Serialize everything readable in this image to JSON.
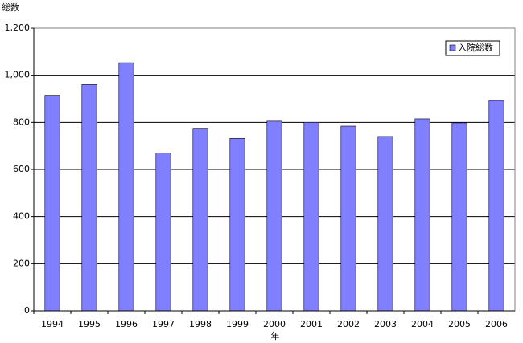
{
  "chart_data": {
    "type": "bar",
    "y_label": "総数",
    "x_label": "年",
    "categories": [
      "1994",
      "1995",
      "1996",
      "1997",
      "1998",
      "1999",
      "2000",
      "2001",
      "2002",
      "2003",
      "2004",
      "2005",
      "2006"
    ],
    "series": [
      {
        "name": "入院総数",
        "color": "#8080ff",
        "values": [
          915,
          960,
          1053,
          670,
          775,
          732,
          805,
          800,
          784,
          740,
          815,
          798,
          893
        ]
      }
    ],
    "ylim": [
      0,
      1200
    ],
    "yticks": [
      0,
      200,
      400,
      600,
      800,
      {
        "value": 1000,
        "label": "1,000"
      },
      {
        "value": 1200,
        "label": "1,200"
      }
    ],
    "grid": true,
    "legend": "upper-right"
  }
}
